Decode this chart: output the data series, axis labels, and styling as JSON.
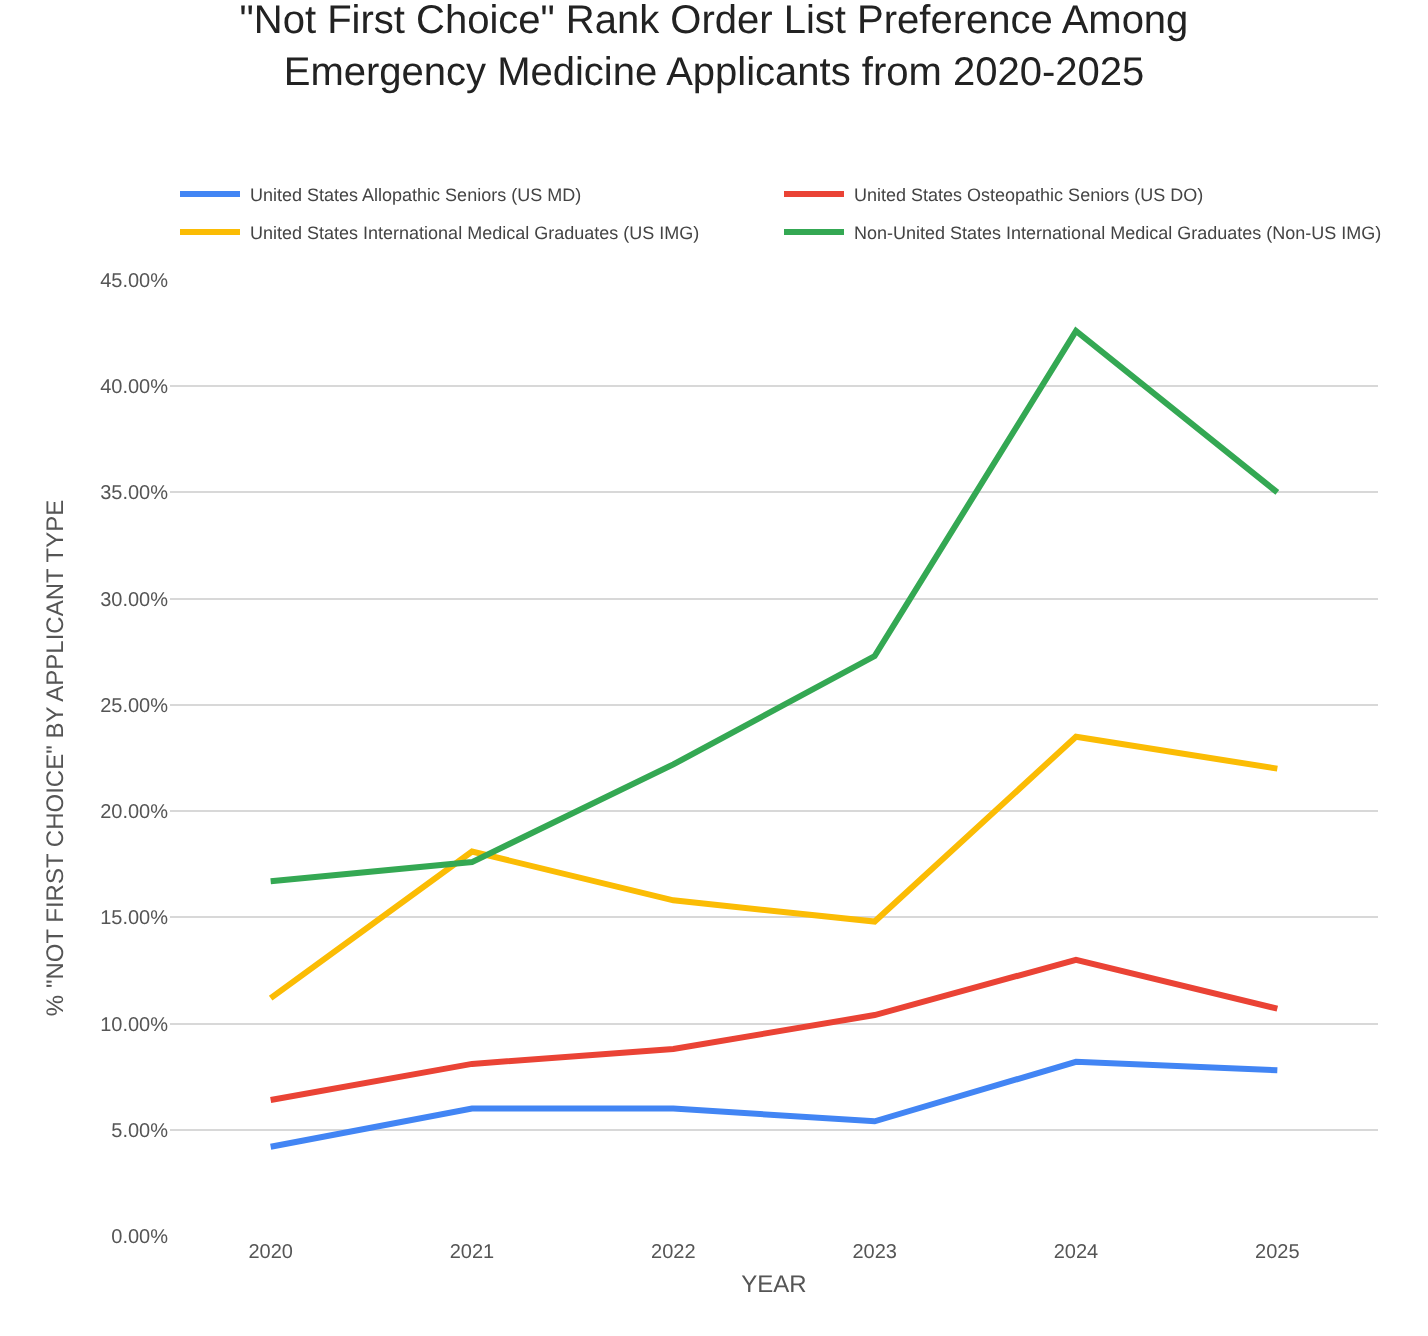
{
  "chart_data": {
    "type": "line",
    "title": "\"Not First Choice\" Rank Order List Preference Among\nEmergency Medicine Applicants from 2020-2025",
    "xlabel": "YEAR",
    "ylabel": "% \"NOT FIRST CHOICE\" BY APPLICANT TYPE",
    "categories": [
      "2020",
      "2021",
      "2022",
      "2023",
      "2024",
      "2025"
    ],
    "series": [
      {
        "name": "United States Allopathic Seniors (US MD)",
        "color": "#4285f4",
        "values": [
          4.2,
          6.0,
          6.0,
          5.4,
          8.2,
          7.8
        ]
      },
      {
        "name": "United States Osteopathic Seniors (US DO)",
        "color": "#ea4335",
        "values": [
          6.4,
          8.1,
          8.8,
          10.4,
          13.0,
          10.7
        ]
      },
      {
        "name": "United States International Medical Graduates (US IMG)",
        "color": "#fbbc04",
        "values": [
          11.2,
          18.1,
          15.8,
          14.8,
          23.5,
          22.0
        ]
      },
      {
        "name": "Non-United States International Medical Graduates (Non-US IMG)",
        "color": "#34a853",
        "values": [
          16.7,
          17.6,
          22.2,
          27.3,
          42.6,
          35.0
        ]
      }
    ],
    "ylim": [
      0,
      45
    ],
    "yticks": [
      {
        "value": 0,
        "label": "0.00%"
      },
      {
        "value": 5,
        "label": "5.00%"
      },
      {
        "value": 10,
        "label": "10.00%"
      },
      {
        "value": 15,
        "label": "15.00%"
      },
      {
        "value": 20,
        "label": "20.00%"
      },
      {
        "value": 25,
        "label": "25.00%"
      },
      {
        "value": 30,
        "label": "30.00%"
      },
      {
        "value": 35,
        "label": "35.00%"
      },
      {
        "value": 40,
        "label": "40.00%"
      },
      {
        "value": 45,
        "label": "45.00%"
      }
    ],
    "grid": "y",
    "legend": "top",
    "marker": "none",
    "line_style": "solid"
  }
}
